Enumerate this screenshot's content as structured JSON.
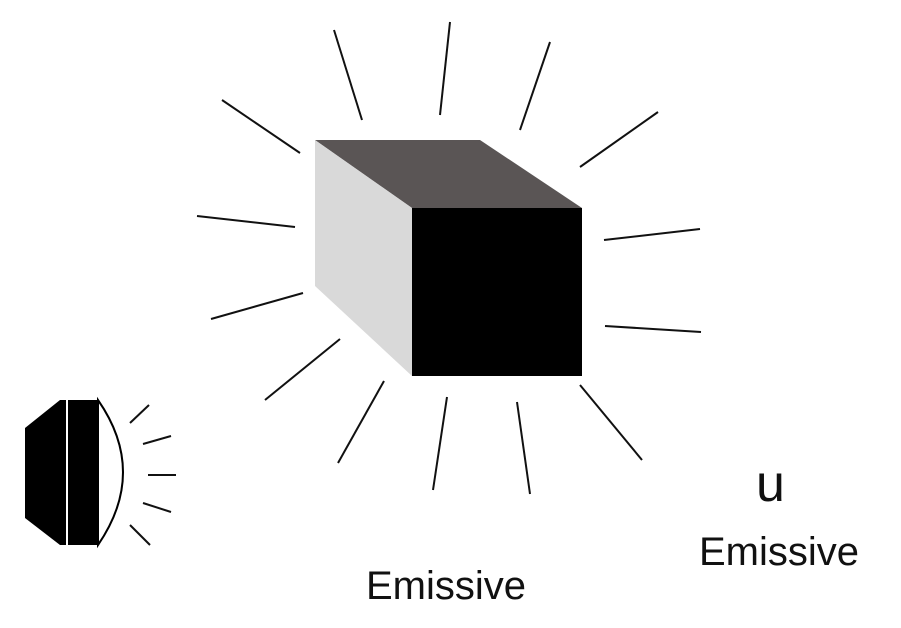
{
  "labels": {
    "emissive_bottom": "Emissive",
    "symbol_u": "u",
    "emissive_right": "Emissive"
  },
  "colors": {
    "cube_top": "#5a5555",
    "cube_side": "#d9d9d9",
    "cube_front": "#000000",
    "rays": "#111111",
    "text": "#111111"
  }
}
